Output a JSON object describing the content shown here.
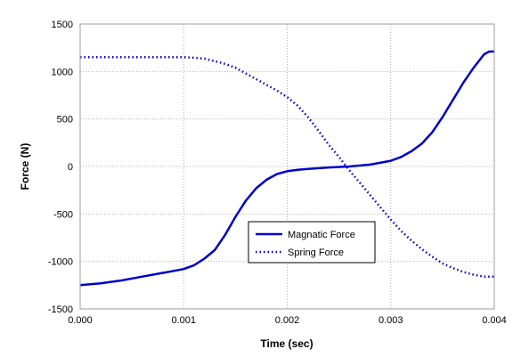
{
  "chart_data": {
    "type": "line",
    "title": "",
    "xlabel": "Time (sec)",
    "ylabel": "Force (N)",
    "xlim": [
      0,
      0.004
    ],
    "ylim": [
      -1500,
      1500
    ],
    "x_ticks": [
      "0.000",
      "0.001",
      "0.002",
      "0.003",
      "0.004"
    ],
    "y_ticks": [
      "1500",
      "1000",
      "500",
      "0",
      "-500",
      "-1000",
      "-1500"
    ],
    "grid": true,
    "legend_position": "lower-center",
    "colors": {
      "series": "#0000cc",
      "grid": "#b0b0b0",
      "border": "#9e9e9e"
    },
    "series": [
      {
        "name": "Magnatic Force",
        "style": "solid",
        "x": [
          0,
          0.0002,
          0.0004,
          0.0006,
          0.0008,
          0.001,
          0.0011,
          0.0012,
          0.0013,
          0.0014,
          0.0015,
          0.0016,
          0.0017,
          0.0018,
          0.0019,
          0.002,
          0.0021,
          0.0022,
          0.0024,
          0.0026,
          0.0028,
          0.003,
          0.0031,
          0.0032,
          0.0033,
          0.0034,
          0.0035,
          0.0036,
          0.0037,
          0.0038,
          0.0039,
          0.00395,
          0.004
        ],
        "y": [
          -1250,
          -1230,
          -1200,
          -1160,
          -1120,
          -1080,
          -1040,
          -970,
          -880,
          -720,
          -530,
          -360,
          -230,
          -140,
          -80,
          -50,
          -35,
          -25,
          -10,
          0,
          20,
          60,
          100,
          160,
          240,
          360,
          520,
          700,
          880,
          1040,
          1180,
          1210,
          1210
        ]
      },
      {
        "name": "Spring Force",
        "style": "dotted",
        "x": [
          0,
          0.0002,
          0.0004,
          0.0006,
          0.0008,
          0.001,
          0.0011,
          0.0012,
          0.0013,
          0.0014,
          0.0015,
          0.0016,
          0.0017,
          0.0018,
          0.0019,
          0.002,
          0.0021,
          0.0022,
          0.0023,
          0.0024,
          0.0025,
          0.0026,
          0.0027,
          0.0028,
          0.0029,
          0.003,
          0.0031,
          0.0032,
          0.0033,
          0.0034,
          0.0035,
          0.0036,
          0.0037,
          0.0038,
          0.0039,
          0.004
        ],
        "y": [
          1150,
          1150,
          1150,
          1150,
          1150,
          1150,
          1145,
          1135,
          1110,
          1080,
          1040,
          980,
          920,
          860,
          800,
          730,
          640,
          520,
          380,
          230,
          100,
          -40,
          -170,
          -300,
          -430,
          -560,
          -680,
          -780,
          -870,
          -950,
          -1020,
          -1070,
          -1110,
          -1140,
          -1160,
          -1160
        ]
      }
    ]
  }
}
